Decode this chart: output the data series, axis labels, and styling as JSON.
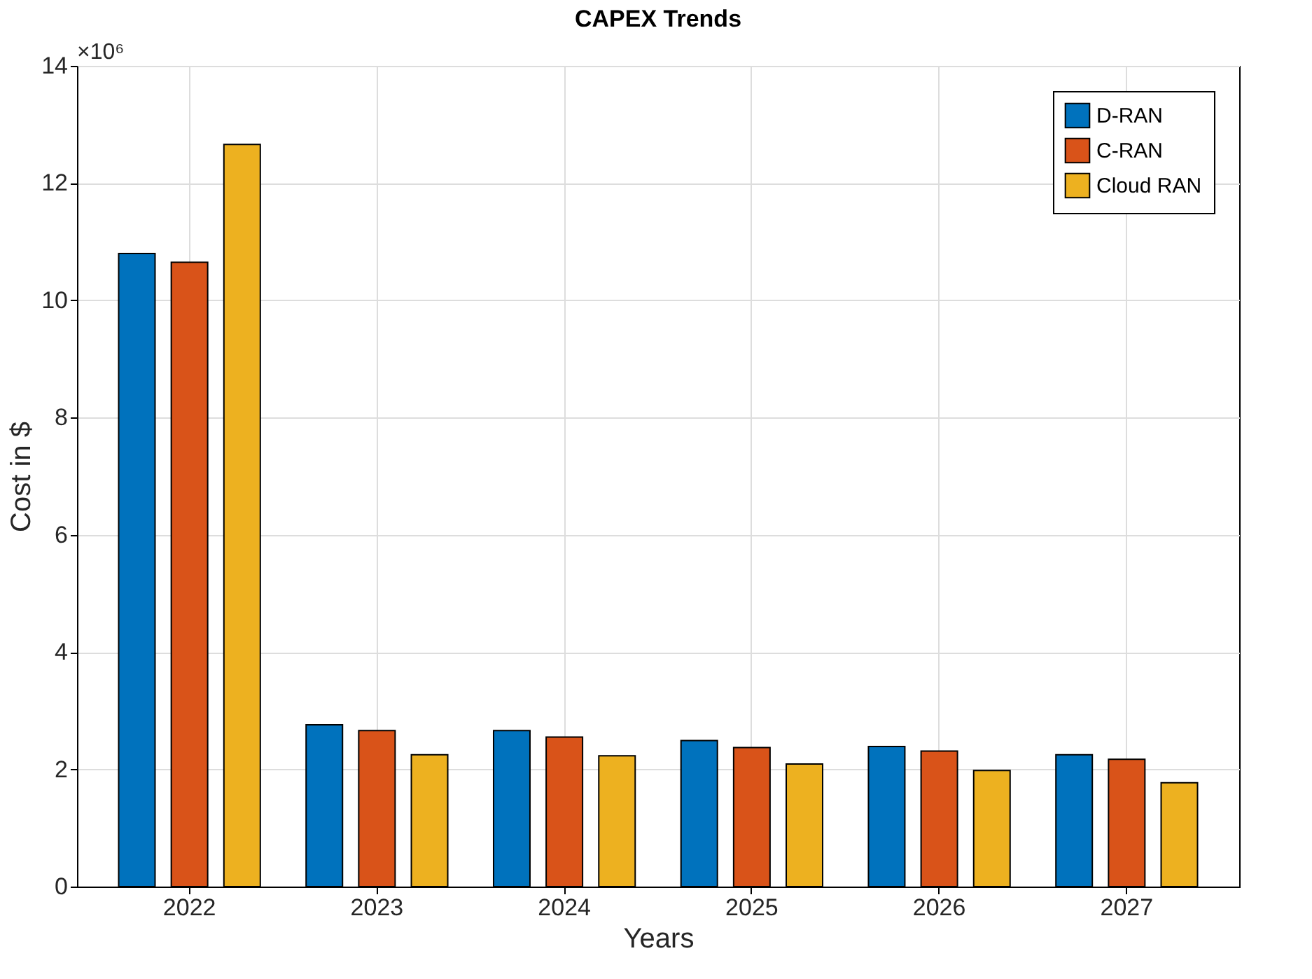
{
  "chart_data": {
    "type": "bar",
    "title": "CAPEX Trends",
    "xlabel": "Years",
    "ylabel": "Cost in $",
    "categories": [
      "2022",
      "2023",
      "2024",
      "2025",
      "2026",
      "2027"
    ],
    "series": [
      {
        "name": "D-RAN",
        "color": "#0072bd",
        "values": [
          10.8,
          2.76,
          2.66,
          2.49,
          2.39,
          2.25
        ]
      },
      {
        "name": "C-RAN",
        "color": "#d95319",
        "values": [
          10.65,
          2.66,
          2.55,
          2.37,
          2.31,
          2.17
        ]
      },
      {
        "name": "Cloud RAN",
        "color": "#edb120",
        "values": [
          12.66,
          2.25,
          2.23,
          2.09,
          1.98,
          1.77
        ]
      }
    ],
    "ylim": [
      0,
      14
    ],
    "yticks": [
      0,
      2,
      4,
      6,
      8,
      10,
      12,
      14
    ],
    "annotations": [
      "×10⁶"
    ],
    "grid": true,
    "legend": "top right"
  }
}
